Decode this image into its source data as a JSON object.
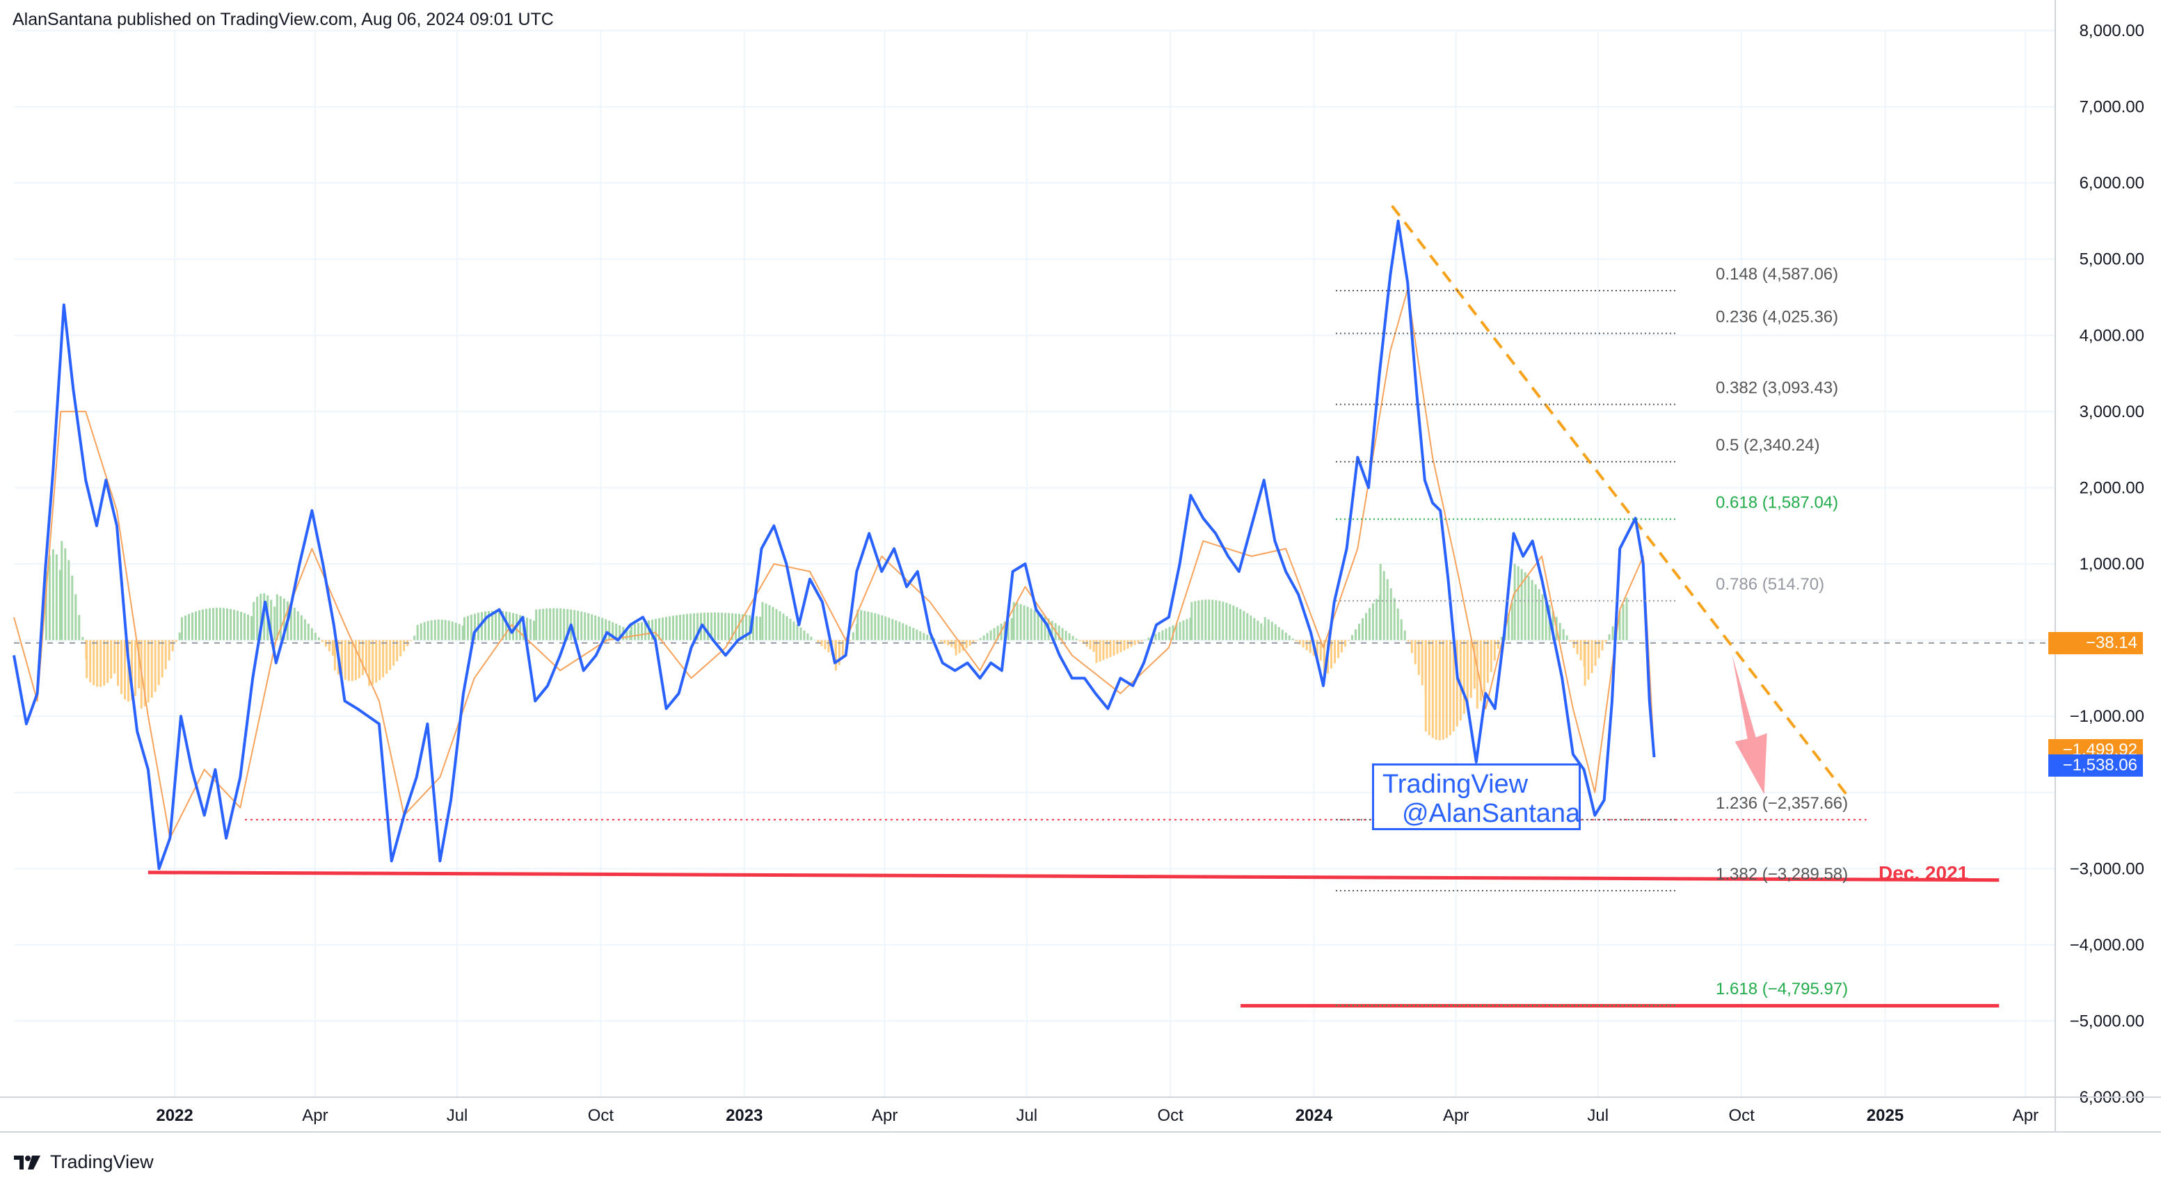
{
  "header": {
    "published": "AlanSantana published on TradingView.com, Aug 06, 2024 09:01 UTC"
  },
  "footer": {
    "brand": "TradingView",
    "logo_icon": "tradingview-logo-icon"
  },
  "watermark": {
    "line1": "TradingView",
    "line2": "@AlanSantana"
  },
  "annotations": {
    "dec_2021": "Dec. 2021"
  },
  "price_tags": [
    {
      "label": "−38.14",
      "value": -38.14,
      "color": "#f7931a"
    },
    {
      "label": "−1,499.92",
      "value": -1499.92,
      "color": "#f7931a"
    },
    {
      "label": "−1,538.06",
      "value": -1538.06,
      "color": "#2962ff"
    }
  ],
  "colors": {
    "main_line": "#2962ff",
    "signal_line": "#f7a35c",
    "hist_positive": "#a5d6a7",
    "hist_negative": "#ffcc80",
    "support_line": "#f23645",
    "trend_line": "#f7a21b",
    "fib_green": "#22ab4a",
    "fib_gray": "#555555",
    "fib_light": "#9598a1",
    "grid": "#eef6fb"
  },
  "chart_data": {
    "type": "line",
    "title": "",
    "xlabel": "",
    "ylabel": "",
    "ylim": [
      -6000,
      8000
    ],
    "y_ticks": [
      8000,
      7000,
      6000,
      5000,
      4000,
      3000,
      2000,
      1000,
      0,
      -1000,
      -2000,
      -3000,
      -4000,
      -5000,
      -6000
    ],
    "y_tick_labels": [
      "8,000.00",
      "7,000.00",
      "6,000.00",
      "5,000.00",
      "4,000.00",
      "3,000.00",
      "2,000.00",
      "1,000.00",
      "",
      "−1,000.00",
      "",
      "−3,000.00",
      "−4,000.00",
      "−5,000.00",
      "−6,000.00"
    ],
    "x_range": [
      "2021-09-20",
      "2025-04-20"
    ],
    "x_ticks": [
      {
        "date": "2022-01-01",
        "label": "2022",
        "bold": true
      },
      {
        "date": "2022-04-01",
        "label": "Apr",
        "bold": false
      },
      {
        "date": "2022-07-01",
        "label": "Jul",
        "bold": false
      },
      {
        "date": "2022-10-01",
        "label": "Oct",
        "bold": false
      },
      {
        "date": "2023-01-01",
        "label": "2023",
        "bold": true
      },
      {
        "date": "2023-04-01",
        "label": "Apr",
        "bold": false
      },
      {
        "date": "2023-07-01",
        "label": "Jul",
        "bold": false
      },
      {
        "date": "2023-10-01",
        "label": "Oct",
        "bold": false
      },
      {
        "date": "2024-01-01",
        "label": "2024",
        "bold": true
      },
      {
        "date": "2024-04-01",
        "label": "Apr",
        "bold": false
      },
      {
        "date": "2024-07-01",
        "label": "Jul",
        "bold": false
      },
      {
        "date": "2024-10-01",
        "label": "Oct",
        "bold": false
      },
      {
        "date": "2025-01-01",
        "label": "2025",
        "bold": true
      },
      {
        "date": "2025-04-01",
        "label": "Apr",
        "bold": false
      }
    ],
    "series": [
      {
        "points": [
          [
            "2021-09-20",
            -200
          ],
          [
            "2021-09-28",
            -1100
          ],
          [
            "2021-10-05",
            -700
          ],
          [
            "2021-10-10",
            900
          ],
          [
            "2021-10-15",
            2200
          ],
          [
            "2021-10-22",
            4400
          ],
          [
            "2021-10-28",
            3300
          ],
          [
            "2021-11-05",
            2100
          ],
          [
            "2021-11-12",
            1500
          ],
          [
            "2021-11-18",
            2100
          ],
          [
            "2021-11-25",
            1500
          ],
          [
            "2021-12-02",
            -200
          ],
          [
            "2021-12-08",
            -1200
          ],
          [
            "2021-12-15",
            -1700
          ],
          [
            "2021-12-22",
            -3000
          ],
          [
            "2021-12-29",
            -2600
          ],
          [
            "2022-01-05",
            -1000
          ],
          [
            "2022-01-12",
            -1700
          ],
          [
            "2022-01-20",
            -2300
          ],
          [
            "2022-01-27",
            -1700
          ],
          [
            "2022-02-03",
            -2600
          ],
          [
            "2022-02-12",
            -1800
          ],
          [
            "2022-02-20",
            -500
          ],
          [
            "2022-02-28",
            500
          ],
          [
            "2022-03-07",
            -300
          ],
          [
            "2022-03-15",
            300
          ],
          [
            "2022-03-22",
            1000
          ],
          [
            "2022-03-30",
            1700
          ],
          [
            "2022-04-06",
            1000
          ],
          [
            "2022-04-13",
            200
          ],
          [
            "2022-04-20",
            -800
          ],
          [
            "2022-04-28",
            -900
          ],
          [
            "2022-05-05",
            -1000
          ],
          [
            "2022-05-12",
            -1100
          ],
          [
            "2022-05-20",
            -2900
          ],
          [
            "2022-05-28",
            -2300
          ],
          [
            "2022-06-05",
            -1800
          ],
          [
            "2022-06-12",
            -1100
          ],
          [
            "2022-06-20",
            -2900
          ],
          [
            "2022-06-27",
            -2100
          ],
          [
            "2022-07-05",
            -700
          ],
          [
            "2022-07-12",
            100
          ],
          [
            "2022-07-20",
            300
          ],
          [
            "2022-07-28",
            400
          ],
          [
            "2022-08-05",
            100
          ],
          [
            "2022-08-12",
            300
          ],
          [
            "2022-08-20",
            -800
          ],
          [
            "2022-08-28",
            -600
          ],
          [
            "2022-09-05",
            -200
          ],
          [
            "2022-09-12",
            200
          ],
          [
            "2022-09-20",
            -400
          ],
          [
            "2022-09-28",
            -200
          ],
          [
            "2022-10-05",
            100
          ],
          [
            "2022-10-12",
            0
          ],
          [
            "2022-10-20",
            200
          ],
          [
            "2022-10-28",
            300
          ],
          [
            "2022-11-05",
            0
          ],
          [
            "2022-11-12",
            -900
          ],
          [
            "2022-11-20",
            -700
          ],
          [
            "2022-11-28",
            -100
          ],
          [
            "2022-12-05",
            200
          ],
          [
            "2022-12-12",
            0
          ],
          [
            "2022-12-20",
            -200
          ],
          [
            "2022-12-28",
            0
          ],
          [
            "2023-01-05",
            100
          ],
          [
            "2023-01-12",
            1200
          ],
          [
            "2023-01-20",
            1500
          ],
          [
            "2023-01-28",
            1000
          ],
          [
            "2023-02-05",
            200
          ],
          [
            "2023-02-12",
            800
          ],
          [
            "2023-02-20",
            500
          ],
          [
            "2023-02-28",
            -300
          ],
          [
            "2023-03-07",
            -200
          ],
          [
            "2023-03-14",
            900
          ],
          [
            "2023-03-22",
            1400
          ],
          [
            "2023-03-30",
            900
          ],
          [
            "2023-04-07",
            1200
          ],
          [
            "2023-04-15",
            700
          ],
          [
            "2023-04-22",
            900
          ],
          [
            "2023-04-30",
            100
          ],
          [
            "2023-05-08",
            -300
          ],
          [
            "2023-05-16",
            -400
          ],
          [
            "2023-05-24",
            -300
          ],
          [
            "2023-06-01",
            -500
          ],
          [
            "2023-06-08",
            -300
          ],
          [
            "2023-06-15",
            -400
          ],
          [
            "2023-06-22",
            900
          ],
          [
            "2023-06-30",
            1000
          ],
          [
            "2023-07-07",
            400
          ],
          [
            "2023-07-14",
            200
          ],
          [
            "2023-07-22",
            -200
          ],
          [
            "2023-07-30",
            -500
          ],
          [
            "2023-08-07",
            -500
          ],
          [
            "2023-08-14",
            -700
          ],
          [
            "2023-08-22",
            -900
          ],
          [
            "2023-08-30",
            -500
          ],
          [
            "2023-09-07",
            -600
          ],
          [
            "2023-09-14",
            -300
          ],
          [
            "2023-09-22",
            200
          ],
          [
            "2023-09-30",
            300
          ],
          [
            "2023-10-07",
            1000
          ],
          [
            "2023-10-14",
            1900
          ],
          [
            "2023-10-22",
            1600
          ],
          [
            "2023-10-30",
            1400
          ],
          [
            "2023-11-07",
            1100
          ],
          [
            "2023-11-14",
            900
          ],
          [
            "2023-11-22",
            1500
          ],
          [
            "2023-11-30",
            2100
          ],
          [
            "2023-12-07",
            1300
          ],
          [
            "2023-12-14",
            900
          ],
          [
            "2023-12-22",
            600
          ],
          [
            "2023-12-30",
            100
          ],
          [
            "2024-01-07",
            -600
          ],
          [
            "2024-01-14",
            500
          ],
          [
            "2024-01-22",
            1200
          ],
          [
            "2024-01-29",
            2400
          ],
          [
            "2024-02-05",
            2000
          ],
          [
            "2024-02-12",
            3500
          ],
          [
            "2024-02-19",
            4800
          ],
          [
            "2024-02-24",
            5500
          ],
          [
            "2024-03-01",
            4700
          ],
          [
            "2024-03-07",
            3200
          ],
          [
            "2024-03-12",
            2100
          ],
          [
            "2024-03-17",
            1800
          ],
          [
            "2024-03-22",
            1700
          ],
          [
            "2024-03-27",
            800
          ],
          [
            "2024-04-02",
            -500
          ],
          [
            "2024-04-08",
            -800
          ],
          [
            "2024-04-14",
            -1600
          ],
          [
            "2024-04-20",
            -700
          ],
          [
            "2024-04-26",
            -900
          ],
          [
            "2024-05-02",
            100
          ],
          [
            "2024-05-08",
            1400
          ],
          [
            "2024-05-14",
            1100
          ],
          [
            "2024-05-20",
            1300
          ],
          [
            "2024-05-26",
            800
          ],
          [
            "2024-06-01",
            200
          ],
          [
            "2024-06-08",
            -500
          ],
          [
            "2024-06-15",
            -1500
          ],
          [
            "2024-06-22",
            -1700
          ],
          [
            "2024-06-29",
            -2300
          ],
          [
            "2024-07-05",
            -2100
          ],
          [
            "2024-07-10",
            -800
          ],
          [
            "2024-07-15",
            1200
          ],
          [
            "2024-07-20",
            1400
          ],
          [
            "2024-07-25",
            1600
          ],
          [
            "2024-07-30",
            1000
          ],
          [
            "2024-08-03",
            -800
          ],
          [
            "2024-08-06",
            -1538
          ]
        ]
      },
      {
        "points": [
          [
            "2021-09-20",
            300
          ],
          [
            "2021-10-05",
            -800
          ],
          [
            "2021-10-20",
            3000
          ],
          [
            "2021-11-05",
            3000
          ],
          [
            "2021-11-25",
            1700
          ],
          [
            "2021-12-15",
            -1000
          ],
          [
            "2021-12-29",
            -2600
          ],
          [
            "2022-01-20",
            -1700
          ],
          [
            "2022-02-12",
            -2200
          ],
          [
            "2022-03-07",
            0
          ],
          [
            "2022-03-30",
            1200
          ],
          [
            "2022-04-20",
            200
          ],
          [
            "2022-05-12",
            -800
          ],
          [
            "2022-05-28",
            -2300
          ],
          [
            "2022-06-20",
            -1800
          ],
          [
            "2022-07-12",
            -500
          ],
          [
            "2022-08-05",
            200
          ],
          [
            "2022-09-05",
            -400
          ],
          [
            "2022-10-05",
            0
          ],
          [
            "2022-11-05",
            100
          ],
          [
            "2022-11-28",
            -500
          ],
          [
            "2022-12-20",
            -100
          ],
          [
            "2023-01-20",
            1000
          ],
          [
            "2023-02-12",
            900
          ],
          [
            "2023-03-07",
            0
          ],
          [
            "2023-03-30",
            1100
          ],
          [
            "2023-04-30",
            500
          ],
          [
            "2023-06-01",
            -400
          ],
          [
            "2023-06-30",
            700
          ],
          [
            "2023-07-30",
            -200
          ],
          [
            "2023-08-30",
            -700
          ],
          [
            "2023-09-30",
            -100
          ],
          [
            "2023-10-22",
            1300
          ],
          [
            "2023-11-22",
            1100
          ],
          [
            "2023-12-14",
            1200
          ],
          [
            "2024-01-07",
            -100
          ],
          [
            "2024-01-29",
            1200
          ],
          [
            "2024-02-19",
            3800
          ],
          [
            "2024-03-01",
            4600
          ],
          [
            "2024-03-17",
            2400
          ],
          [
            "2024-04-02",
            900
          ],
          [
            "2024-04-20",
            -900
          ],
          [
            "2024-05-08",
            600
          ],
          [
            "2024-05-26",
            1100
          ],
          [
            "2024-06-15",
            -900
          ],
          [
            "2024-06-29",
            -2000
          ],
          [
            "2024-07-15",
            400
          ],
          [
            "2024-07-30",
            1100
          ],
          [
            "2024-08-06",
            -1499.92
          ]
        ]
      }
    ],
    "histogram": [
      [
        "2021-10-10",
        900
      ],
      [
        "2021-10-20",
        1300
      ],
      [
        "2021-11-05",
        -500
      ],
      [
        "2021-11-25",
        -600
      ],
      [
        "2021-12-10",
        -900
      ],
      [
        "2022-01-05",
        300
      ],
      [
        "2022-02-20",
        500
      ],
      [
        "2022-03-07",
        600
      ],
      [
        "2022-04-13",
        -400
      ],
      [
        "2022-05-05",
        -600
      ],
      [
        "2022-06-05",
        200
      ],
      [
        "2022-07-05",
        300
      ],
      [
        "2022-08-20",
        400
      ],
      [
        "2022-10-20",
        200
      ],
      [
        "2023-01-12",
        500
      ],
      [
        "2023-02-28",
        -400
      ],
      [
        "2023-03-14",
        400
      ],
      [
        "2023-05-16",
        -200
      ],
      [
        "2023-06-22",
        500
      ],
      [
        "2023-08-14",
        -300
      ],
      [
        "2023-10-14",
        500
      ],
      [
        "2023-11-30",
        300
      ],
      [
        "2024-01-07",
        -500
      ],
      [
        "2024-02-12",
        1000
      ],
      [
        "2024-03-12",
        -1200
      ],
      [
        "2024-04-14",
        -900
      ],
      [
        "2024-05-08",
        1000
      ],
      [
        "2024-06-22",
        -600
      ],
      [
        "2024-07-20",
        1000
      ]
    ],
    "fib_levels": [
      {
        "label": "0.148 (4,587.06)",
        "value": 4587.06,
        "color": "#555555"
      },
      {
        "label": "0.236 (4,025.36)",
        "value": 4025.36,
        "color": "#555555"
      },
      {
        "label": "0.382 (3,093.43)",
        "value": 3093.43,
        "color": "#555555"
      },
      {
        "label": "0.5 (2,340.24)",
        "value": 2340.24,
        "color": "#555555"
      },
      {
        "label": "0.618 (1,587.04)",
        "value": 1587.04,
        "color": "#22ab4a"
      },
      {
        "label": "0.786 (514.70)",
        "value": 514.7,
        "color": "#9598a1"
      },
      {
        "label": "1.236 (−2,357.66)",
        "value": -2357.66,
        "color": "#555555"
      },
      {
        "label": "1.382 (−3,289.58)",
        "value": -3289.58,
        "color": "#555555"
      },
      {
        "label": "1.618 (−4,795.97)",
        "value": -4795.97,
        "color": "#22ab4a"
      }
    ],
    "support_lines": [
      {
        "from": [
          "2021-12-15",
          -3050
        ],
        "to": [
          "2025-03-15",
          -3150
        ]
      },
      {
        "from": [
          "2023-11-15",
          -4800
        ],
        "to": [
          "2025-03-15",
          -4800
        ]
      }
    ],
    "trend_line": {
      "from": [
        "2024-02-20",
        5700
      ],
      "to": [
        "2024-12-10",
        -2100
      ]
    },
    "red_dotted_line": {
      "from": [
        "2022-02-15",
        -2357.66
      ],
      "to": [
        "2024-12-20",
        -2357.66
      ]
    },
    "zero_dashed_line": {
      "value": -38.14
    }
  }
}
